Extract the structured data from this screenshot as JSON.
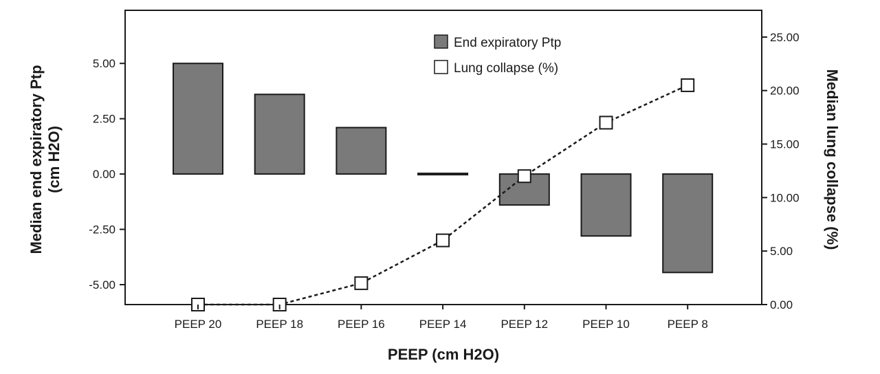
{
  "chart_data": {
    "type": "bar",
    "xlabel": "PEEP (cm H2O)",
    "ylabel": [
      "Median end expiratory Ptp",
      "(cm H2O)"
    ],
    "y2label": "Median lung collapse (%)",
    "categories": [
      "PEEP 20",
      "PEEP 18",
      "PEEP 16",
      "PEEP 14",
      "PEEP 12",
      "PEEP 10",
      "PEEP 8"
    ],
    "series": [
      {
        "name": "End expiratory Ptp",
        "kind": "bar",
        "axis": "left",
        "color": "#7a7a7a",
        "values": [
          5.0,
          3.6,
          2.1,
          0.0,
          -1.4,
          -2.8,
          -4.45
        ]
      },
      {
        "name": "Lung collapse (%)",
        "kind": "line",
        "axis": "right",
        "style": "dashed",
        "marker": "open-square",
        "values": [
          0.0,
          0.0,
          2.0,
          6.0,
          12.0,
          17.0,
          20.5
        ]
      }
    ],
    "ylim": [
      -5.9,
      7.4
    ],
    "yticks": [
      "5.00",
      "2.50",
      "0.00",
      "-2.50",
      "-5.00"
    ],
    "yticks_values": [
      5.0,
      2.5,
      0.0,
      -2.5,
      -5.0
    ],
    "y2lim": [
      0,
      27.5
    ],
    "y2ticks": [
      "25.00",
      "20.00",
      "15.00",
      "10.00",
      "5.00",
      "0.00"
    ],
    "y2ticks_values": [
      25,
      20,
      15,
      10,
      5,
      0
    ],
    "legend": [
      "End expiratory Ptp",
      "Lung collapse (%)"
    ],
    "legend_position": "top-center",
    "grid": false
  }
}
